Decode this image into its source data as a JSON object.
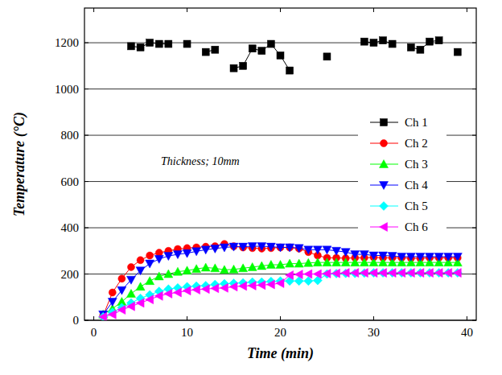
{
  "chart_data": {
    "type": "line",
    "x_label": "Time (min)",
    "y_label": "Temperature (°C)",
    "annotation": "Thickness; 10mm",
    "x": [
      1,
      2,
      3,
      4,
      5,
      6,
      7,
      8,
      9,
      10,
      11,
      12,
      13,
      14,
      15,
      16,
      17,
      18,
      19,
      20,
      21,
      22,
      23,
      24,
      25,
      26,
      27,
      28,
      29,
      30,
      31,
      32,
      33,
      34,
      35,
      36,
      37,
      38,
      39
    ],
    "xlim": [
      -1,
      41
    ],
    "xticks": [
      0,
      10,
      20,
      30,
      40
    ],
    "ylim": [
      0,
      1350
    ],
    "yticks": [
      0,
      200,
      400,
      600,
      800,
      1000,
      1200
    ],
    "grid": true,
    "legend": "right",
    "series": [
      {
        "name": "Ch 1",
        "color": "#000000",
        "marker": "square",
        "values": [
          null,
          null,
          null,
          1185,
          1180,
          1200,
          1195,
          1195,
          null,
          1195,
          null,
          1160,
          1170,
          null,
          1090,
          1100,
          1175,
          1165,
          1195,
          1145,
          1080,
          null,
          null,
          null,
          1140,
          null,
          null,
          null,
          1205,
          1200,
          1210,
          1195,
          null,
          1180,
          1170,
          1205,
          1210,
          null,
          1160
        ]
      },
      {
        "name": "Ch 2",
        "color": "#ff0000",
        "marker": "circle",
        "values": [
          20,
          120,
          180,
          230,
          260,
          280,
          292,
          300,
          308,
          312,
          315,
          318,
          320,
          330,
          320,
          315,
          312,
          310,
          312,
          315,
          315,
          310,
          295,
          280,
          270,
          270,
          268,
          270,
          270,
          272,
          270,
          270,
          270,
          268,
          268,
          270,
          270,
          270,
          270
        ]
      },
      {
        "name": "Ch 3",
        "color": "#00ff00",
        "marker": "triangle",
        "values": [
          25,
          50,
          80,
          115,
          145,
          170,
          190,
          200,
          210,
          215,
          222,
          228,
          225,
          218,
          220,
          225,
          230,
          235,
          240,
          240,
          245,
          245,
          248,
          250,
          250,
          250,
          250,
          250,
          250,
          250,
          250,
          250,
          250,
          250,
          250,
          250,
          250,
          250,
          250
        ]
      },
      {
        "name": "Ch 4",
        "color": "#0000ff",
        "marker": "triangle-down",
        "values": [
          25,
          80,
          130,
          175,
          215,
          245,
          265,
          278,
          285,
          290,
          298,
          305,
          310,
          315,
          318,
          318,
          320,
          320,
          318,
          315,
          315,
          312,
          305,
          305,
          305,
          300,
          295,
          285,
          285,
          280,
          280,
          278,
          275,
          275,
          275,
          275,
          275,
          275,
          275
        ]
      },
      {
        "name": "Ch 5",
        "color": "#00ffff",
        "marker": "diamond",
        "values": [
          15,
          35,
          55,
          75,
          95,
          110,
          125,
          135,
          140,
          145,
          148,
          150,
          155,
          158,
          160,
          162,
          165,
          165,
          168,
          170,
          170,
          170,
          170,
          172,
          200,
          202,
          203,
          203,
          204,
          205,
          205,
          205,
          205,
          205,
          205,
          205,
          205,
          205,
          205
        ]
      },
      {
        "name": "Ch 6",
        "color": "#ff00ff",
        "marker": "triangle-left",
        "values": [
          15,
          25,
          45,
          60,
          75,
          90,
          105,
          115,
          120,
          128,
          132,
          135,
          138,
          140,
          145,
          148,
          150,
          152,
          155,
          160,
          195,
          198,
          200,
          200,
          202,
          203,
          205,
          205,
          205,
          205,
          205,
          205,
          205,
          205,
          205,
          205,
          205,
          205,
          205
        ]
      }
    ]
  }
}
